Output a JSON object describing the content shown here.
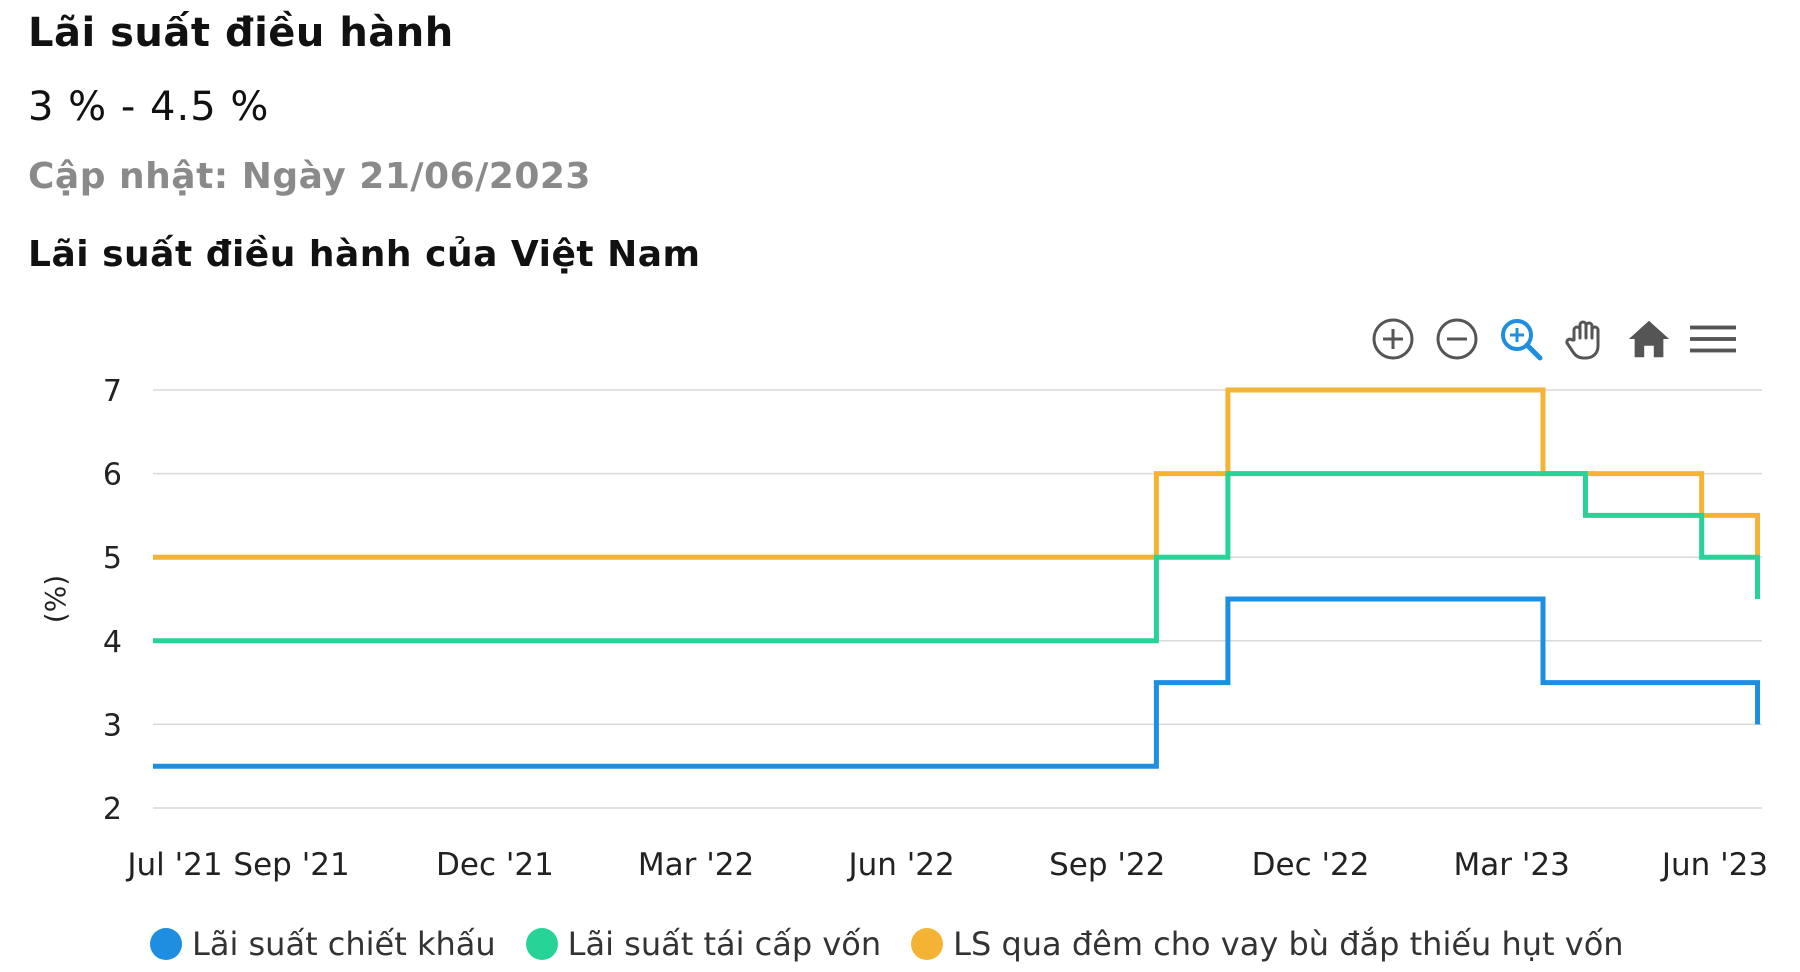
{
  "header": {
    "title": "Lãi suất điều hành",
    "range": "3 % - 4.5 %",
    "updated": "Cập nhật: Ngày 21/06/2023",
    "chart_title": "Lãi suất điều hành của Việt Nam"
  },
  "toolbar": {
    "zoom_in_icon": "plus-circle-icon",
    "zoom_out_icon": "minus-circle-icon",
    "selection_zoom_icon": "magnifier-icon",
    "pan_icon": "hand-icon",
    "reset_icon": "home-icon",
    "menu_icon": "hamburger-menu-icon"
  },
  "colors": {
    "discount": "#1e8fe0",
    "refinancing": "#27d397",
    "overnight": "#f5b335",
    "grid": "#d9d9d9",
    "toolbar_icon": "#555555",
    "toolbar_active": "#1e8fe0"
  },
  "chart_data": {
    "type": "line",
    "step": true,
    "title": "Lãi suất điều hành của Việt Nam",
    "xlabel": "",
    "ylabel": "(%)",
    "ylim": [
      2,
      7
    ],
    "yticks": [
      2,
      3,
      4,
      5,
      6,
      7
    ],
    "x_range": [
      "2021-07-01",
      "2023-06-21"
    ],
    "x_ticks": [
      {
        "date": "2021-07-01",
        "label": "Jul '21"
      },
      {
        "date": "2021-09-01",
        "label": "Sep '21"
      },
      {
        "date": "2021-12-01",
        "label": "Dec '21"
      },
      {
        "date": "2022-03-01",
        "label": "Mar '22"
      },
      {
        "date": "2022-06-01",
        "label": "Jun '22"
      },
      {
        "date": "2022-09-01",
        "label": "Sep '22"
      },
      {
        "date": "2022-12-01",
        "label": "Dec '22"
      },
      {
        "date": "2023-03-01",
        "label": "Mar '23"
      },
      {
        "date": "2023-06-01",
        "label": "Jun '23"
      }
    ],
    "grid": true,
    "legend_position": "bottom",
    "series": [
      {
        "name": "Lãi suất chiết khấu",
        "points": [
          {
            "date": "2021-07-01",
            "value": 2.5
          },
          {
            "date": "2022-09-23",
            "value": 3.5
          },
          {
            "date": "2022-10-25",
            "value": 4.5
          },
          {
            "date": "2023-03-15",
            "value": 3.5
          },
          {
            "date": "2023-06-19",
            "value": 3.0
          }
        ]
      },
      {
        "name": "Lãi suất tái cấp vốn",
        "points": [
          {
            "date": "2021-07-01",
            "value": 4.0
          },
          {
            "date": "2022-09-23",
            "value": 5.0
          },
          {
            "date": "2022-10-25",
            "value": 6.0
          },
          {
            "date": "2023-04-03",
            "value": 5.5
          },
          {
            "date": "2023-05-25",
            "value": 5.0
          },
          {
            "date": "2023-06-19",
            "value": 4.5
          }
        ]
      },
      {
        "name": "LS qua đêm cho vay bù đắp thiếu hụt vốn",
        "points": [
          {
            "date": "2021-07-01",
            "value": 5.0
          },
          {
            "date": "2022-09-23",
            "value": 6.0
          },
          {
            "date": "2022-10-25",
            "value": 7.0
          },
          {
            "date": "2023-03-15",
            "value": 6.0
          },
          {
            "date": "2023-05-25",
            "value": 5.5
          },
          {
            "date": "2023-06-19",
            "value": 5.0
          }
        ]
      }
    ]
  }
}
